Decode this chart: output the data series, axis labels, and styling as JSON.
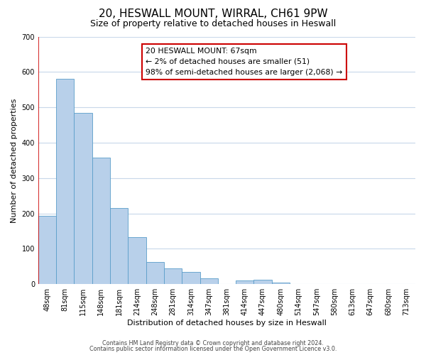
{
  "title": "20, HESWALL MOUNT, WIRRAL, CH61 9PW",
  "subtitle": "Size of property relative to detached houses in Heswall",
  "xlabel": "Distribution of detached houses by size in Heswall",
  "ylabel": "Number of detached properties",
  "bar_labels": [
    "48sqm",
    "81sqm",
    "115sqm",
    "148sqm",
    "181sqm",
    "214sqm",
    "248sqm",
    "281sqm",
    "314sqm",
    "347sqm",
    "381sqm",
    "414sqm",
    "447sqm",
    "480sqm",
    "514sqm",
    "547sqm",
    "580sqm",
    "613sqm",
    "647sqm",
    "680sqm",
    "713sqm"
  ],
  "bar_heights": [
    193,
    580,
    485,
    357,
    215,
    133,
    63,
    44,
    35,
    17,
    0,
    11,
    13,
    5,
    0,
    0,
    0,
    0,
    0,
    0,
    0
  ],
  "bar_color": "#b8d0ea",
  "bar_edge_color": "#5a9ec9",
  "ylim": [
    0,
    700
  ],
  "yticks": [
    0,
    100,
    200,
    300,
    400,
    500,
    600,
    700
  ],
  "vline_color": "#cc0000",
  "vline_x_index": 0.19,
  "annotation_title": "20 HESWALL MOUNT: 67sqm",
  "annotation_line1": "← 2% of detached houses are smaller (51)",
  "annotation_line2": "98% of semi-detached houses are larger (2,068) →",
  "annotation_box_color": "#ffffff",
  "annotation_box_edge": "#cc0000",
  "footer1": "Contains HM Land Registry data © Crown copyright and database right 2024.",
  "footer2": "Contains public sector information licensed under the Open Government Licence v3.0.",
  "bg_color": "#ffffff",
  "grid_color": "#c8d8ea",
  "title_fontsize": 11,
  "subtitle_fontsize": 9,
  "axis_label_fontsize": 8,
  "tick_fontsize": 7,
  "bar_width": 1.0
}
